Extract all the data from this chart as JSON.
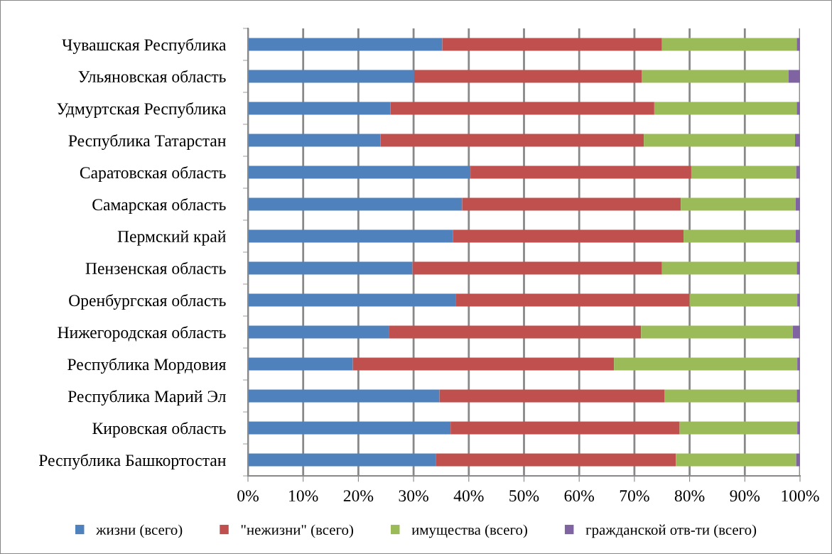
{
  "chart_data": {
    "type": "bar",
    "orientation": "horizontal",
    "stacked": true,
    "categories": [
      "Чувашская Республика",
      "Ульяновская область",
      "Удмуртская Республика",
      "Республика Татарстан",
      "Саратовская область",
      "Самарская область",
      "Пермский край",
      "Пензенская область",
      "Оренбургская область",
      "Нижегородская область",
      "Республика Мордовия",
      "Республика Марий Эл",
      "Кировская область",
      "Республика Башкортостан"
    ],
    "series": [
      {
        "name": "жизни (всего)",
        "color": "#4f81bd",
        "values": [
          35.2,
          30.1,
          25.8,
          24.0,
          40.3,
          38.8,
          37.1,
          29.8,
          37.7,
          25.5,
          19.0,
          34.7,
          36.7,
          34.0
        ]
      },
      {
        "name": "\"нежизни\" (всего)",
        "color": "#c0504d",
        "values": [
          39.8,
          41.2,
          47.8,
          47.7,
          40.0,
          39.6,
          41.8,
          45.2,
          42.3,
          45.7,
          47.3,
          40.8,
          41.5,
          43.5
        ]
      },
      {
        "name": "имущества (всего)",
        "color": "#9bbb59",
        "values": [
          24.4,
          26.6,
          25.8,
          27.4,
          19.0,
          20.8,
          20.3,
          24.4,
          19.5,
          27.5,
          33.2,
          23.9,
          21.3,
          21.8
        ]
      },
      {
        "name": "гражданской отв-ти (всего)",
        "color": "#8064a2",
        "values": [
          0.6,
          2.1,
          0.6,
          0.9,
          0.7,
          0.8,
          0.8,
          0.6,
          0.5,
          1.3,
          0.5,
          0.6,
          0.5,
          0.7
        ]
      }
    ],
    "xlim": [
      0,
      100
    ],
    "xticks": [
      {
        "value": 0,
        "label": "0%"
      },
      {
        "value": 10,
        "label": "10%"
      },
      {
        "value": 20,
        "label": "20%"
      },
      {
        "value": 30,
        "label": "30%"
      },
      {
        "value": 40,
        "label": "40%"
      },
      {
        "value": 50,
        "label": "50%"
      },
      {
        "value": 60,
        "label": "60%"
      },
      {
        "value": 70,
        "label": "70%"
      },
      {
        "value": 80,
        "label": "80%"
      },
      {
        "value": 90,
        "label": "90%"
      },
      {
        "value": 100,
        "label": "100%"
      }
    ],
    "grid": "x",
    "legend": "bottom"
  }
}
